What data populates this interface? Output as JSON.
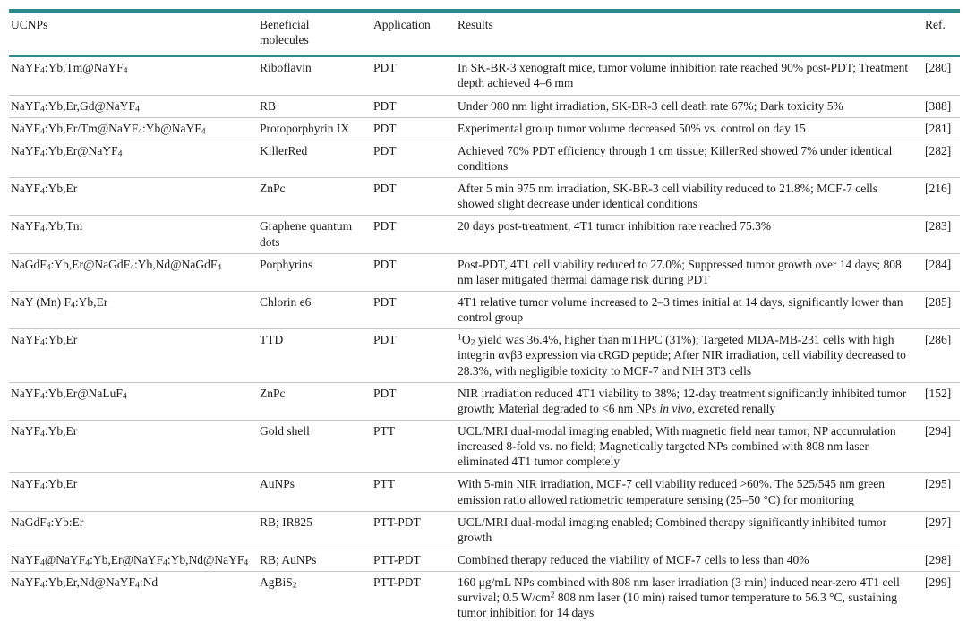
{
  "colors": {
    "accent_teal": "#2e8b8b",
    "row_divider": "#c6c6c6",
    "text": "#1b1b1b"
  },
  "table": {
    "columns": [
      "UCNPs",
      "Beneficial molecules",
      "Application",
      "Results",
      "Ref."
    ],
    "rows": [
      {
        "ucnp": "NaYF<sub>4</sub>:Yb,Tm@NaYF<sub>4</sub>",
        "molecule": "Riboflavin",
        "application": "PDT",
        "results": "In SK-BR-3 xenograft mice, tumor volume inhibition rate reached 90% post-PDT; Treatment depth achieved 4–6 mm",
        "ref": "[280]"
      },
      {
        "ucnp": "NaYF<sub>4</sub>:Yb,Er,Gd@NaYF<sub>4</sub>",
        "molecule": "RB",
        "application": "PDT",
        "results": "Under 980 nm light irradiation, SK-BR-3 cell death rate 67%; Dark toxicity 5%",
        "ref": "[388]"
      },
      {
        "ucnp": "NaYF<sub>4</sub>:Yb,Er/Tm@NaYF<sub>4</sub>:Yb@NaYF<sub>4</sub>",
        "molecule": "Protoporphyrin IX",
        "application": "PDT",
        "results": "Experimental group tumor volume decreased 50% vs. control on day 15",
        "ref": "[281]"
      },
      {
        "ucnp": "NaYF<sub>4</sub>:Yb,Er@NaYF<sub>4</sub>",
        "molecule": "KillerRed",
        "application": "PDT",
        "results": "Achieved 70% PDT efficiency through 1 cm tissue; KillerRed showed 7% under identical conditions",
        "ref": "[282]"
      },
      {
        "ucnp": "NaYF<sub>4</sub>:Yb,Er",
        "molecule": "ZnPc",
        "application": "PDT",
        "results": "After 5 min 975 nm irradiation, SK-BR-3 cell viability reduced to 21.8%; MCF-7 cells showed slight decrease under identical conditions",
        "ref": "[216]"
      },
      {
        "ucnp": "NaYF<sub>4</sub>:Yb,Tm",
        "molecule": "Graphene quantum dots",
        "application": "PDT",
        "results": "20 days post-treatment, 4T1 tumor inhibition rate reached 75.3%",
        "ref": "[283]"
      },
      {
        "ucnp": "NaGdF<sub>4</sub>:Yb,Er@NaGdF<sub>4</sub>:Yb,Nd@NaGdF<sub>4</sub>",
        "molecule": "Porphyrins",
        "application": "PDT",
        "results": "Post-PDT, 4T1 cell viability reduced to 27.0%; Suppressed tumor growth over 14 days; 808 nm laser mitigated thermal damage risk during PDT",
        "ref": "[284]"
      },
      {
        "ucnp": "NaY (Mn) F<sub>4</sub>:Yb,Er",
        "molecule": "Chlorin e6",
        "application": "PDT",
        "results": "4T1 relative tumor volume increased to 2–3 times initial at 14 days, significantly lower than control group",
        "ref": "[285]"
      },
      {
        "ucnp": "NaYF<sub>4</sub>:Yb,Er",
        "molecule": "TTD",
        "application": "PDT",
        "results": "<sup>1</sup>O<sub>2</sub> yield was 36.4%, higher than mTHPC (31%); Targeted MDA-MB-231 cells with high integrin αvβ3 expression via cRGD peptide; After NIR irradiation, cell viability decreased to 28.3%, with negligible toxicity to MCF-7 and NIH 3T3 cells",
        "ref": "[286]"
      },
      {
        "ucnp": "NaYF<sub>4</sub>:Yb,Er@NaLuF<sub>4</sub>",
        "molecule": "ZnPc",
        "application": "PDT",
        "results": "NIR irradiation reduced 4T1 viability to 38%; 12-day treatment significantly inhibited tumor growth; Material degraded to &lt;6 nm NPs <i>in vivo</i>, excreted renally",
        "ref": "[152]"
      },
      {
        "ucnp": "NaYF<sub>4</sub>:Yb,Er",
        "molecule": "Gold shell",
        "application": "PTT",
        "results": "UCL/MRI dual-modal imaging enabled; With magnetic field near tumor, NP accumulation increased 8-fold vs. no field; Magnetically targeted NPs combined with 808 nm laser eliminated 4T1 tumor completely",
        "ref": "[294]"
      },
      {
        "ucnp": "NaYF<sub>4</sub>:Yb,Er",
        "molecule": "AuNPs",
        "application": "PTT",
        "results": "With 5-min NIR irradiation, MCF-7 cell viability reduced &gt;60%. The 525/545 nm green emission ratio allowed ratiometric temperature sensing (25–50 °C) for monitoring",
        "ref": "[295]"
      },
      {
        "ucnp": "NaGdF<sub>4</sub>:Yb:Er",
        "molecule": "RB; IR825",
        "application": "PTT-PDT",
        "results": "UCL/MRI dual-modal imaging enabled; Combined therapy significantly inhibited tumor growth",
        "ref": "[297]"
      },
      {
        "ucnp": "NaYF<sub>4</sub>@NaYF<sub>4</sub>:Yb,Er@NaYF<sub>4</sub>:Yb,Nd@NaYF<sub>4</sub>",
        "molecule": "RB; AuNPs",
        "application": "PTT-PDT",
        "results": "Combined therapy reduced the viability of MCF-7 cells to less than 40%",
        "ref": "[298]"
      },
      {
        "ucnp": "NaYF<sub>4</sub>:Yb,Er,Nd@NaYF<sub>4</sub>:Nd",
        "molecule": "AgBiS<sub>2</sub>",
        "application": "PTT-PDT",
        "results": "160 μg/mL NPs combined with 808 nm laser irradiation (3 min) induced near-zero 4T1 cell survival; 0.5 W/cm<sup>2</sup> 808 nm laser (10 min) raised tumor temperature to 56.3 °C, sustaining tumor inhibition for 14 days",
        "ref": "[299]"
      }
    ]
  }
}
